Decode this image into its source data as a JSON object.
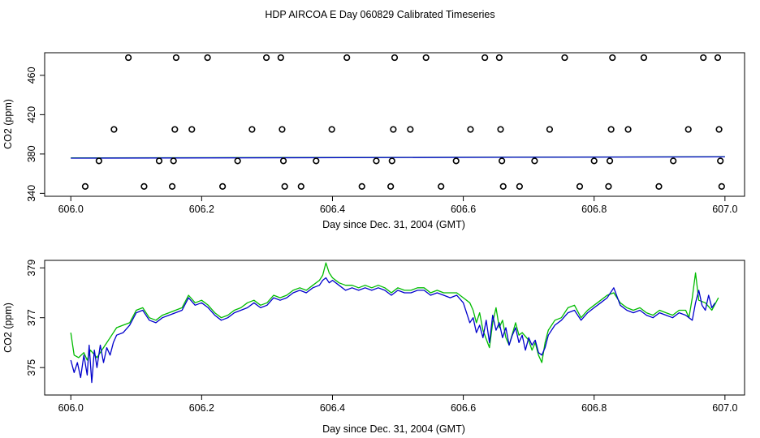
{
  "title": "HDP AIRCOA E  Day 060829  Calibrated Timeseries",
  "colors": {
    "series_green": "#00bb00",
    "series_blue": "#0000cc",
    "axis": "#000000"
  },
  "chart_data": [
    {
      "type": "scatter+line",
      "xlabel": "Day since Dec. 31, 2004 (GMT)",
      "ylabel": "CO2 (ppm)",
      "xlim": [
        605.96,
        607.03
      ],
      "ylim": [
        337,
        483
      ],
      "x_ticks": [
        606.0,
        606.2,
        606.4,
        606.6,
        606.8,
        607.0
      ],
      "x_tick_labels": [
        "606.0",
        "606.2",
        "606.4",
        "606.6",
        "606.8",
        "607.0"
      ],
      "y_ticks": [
        340,
        380,
        420,
        460
      ],
      "y_tick_labels": [
        "340",
        "380",
        "420",
        "460"
      ],
      "grid": false,
      "points": [
        {
          "x": 606.022,
          "y": 347
        },
        {
          "x": 606.043,
          "y": 373
        },
        {
          "x": 606.066,
          "y": 405
        },
        {
          "x": 606.088,
          "y": 478
        },
        {
          "x": 606.112,
          "y": 347
        },
        {
          "x": 606.135,
          "y": 373
        },
        {
          "x": 606.155,
          "y": 347
        },
        {
          "x": 606.157,
          "y": 373
        },
        {
          "x": 606.159,
          "y": 405
        },
        {
          "x": 606.161,
          "y": 478
        },
        {
          "x": 606.185,
          "y": 405
        },
        {
          "x": 606.209,
          "y": 478
        },
        {
          "x": 606.232,
          "y": 347
        },
        {
          "x": 606.255,
          "y": 373
        },
        {
          "x": 606.277,
          "y": 405
        },
        {
          "x": 606.299,
          "y": 478
        },
        {
          "x": 606.321,
          "y": 478
        },
        {
          "x": 606.323,
          "y": 405
        },
        {
          "x": 606.325,
          "y": 373
        },
        {
          "x": 606.327,
          "y": 347
        },
        {
          "x": 606.352,
          "y": 347
        },
        {
          "x": 606.375,
          "y": 373
        },
        {
          "x": 606.399,
          "y": 405
        },
        {
          "x": 606.422,
          "y": 478
        },
        {
          "x": 606.445,
          "y": 347
        },
        {
          "x": 606.467,
          "y": 373
        },
        {
          "x": 606.489,
          "y": 347
        },
        {
          "x": 606.491,
          "y": 373
        },
        {
          "x": 606.493,
          "y": 405
        },
        {
          "x": 606.495,
          "y": 478
        },
        {
          "x": 606.519,
          "y": 405
        },
        {
          "x": 606.543,
          "y": 478
        },
        {
          "x": 606.566,
          "y": 347
        },
        {
          "x": 606.589,
          "y": 373
        },
        {
          "x": 606.611,
          "y": 405
        },
        {
          "x": 606.633,
          "y": 478
        },
        {
          "x": 606.655,
          "y": 478
        },
        {
          "x": 606.657,
          "y": 405
        },
        {
          "x": 606.659,
          "y": 373
        },
        {
          "x": 606.661,
          "y": 347
        },
        {
          "x": 606.686,
          "y": 347
        },
        {
          "x": 606.709,
          "y": 373
        },
        {
          "x": 606.732,
          "y": 405
        },
        {
          "x": 606.755,
          "y": 478
        },
        {
          "x": 606.778,
          "y": 347
        },
        {
          "x": 606.8,
          "y": 373
        },
        {
          "x": 606.822,
          "y": 347
        },
        {
          "x": 606.824,
          "y": 373
        },
        {
          "x": 606.826,
          "y": 405
        },
        {
          "x": 606.828,
          "y": 478
        },
        {
          "x": 606.852,
          "y": 405
        },
        {
          "x": 606.876,
          "y": 478
        },
        {
          "x": 606.899,
          "y": 347
        },
        {
          "x": 606.921,
          "y": 373
        },
        {
          "x": 606.944,
          "y": 405
        },
        {
          "x": 606.967,
          "y": 478
        },
        {
          "x": 606.989,
          "y": 478
        },
        {
          "x": 606.991,
          "y": 405
        },
        {
          "x": 606.993,
          "y": 373
        },
        {
          "x": 606.995,
          "y": 347
        }
      ],
      "series": [
        {
          "color": "#00bb00",
          "x": [
            606.0,
            607.0
          ],
          "values": [
            376.0,
            377.2
          ]
        },
        {
          "color": "#0000cc",
          "x": [
            606.0,
            607.0
          ],
          "values": [
            375.8,
            377.1
          ]
        }
      ]
    },
    {
      "type": "line",
      "xlabel": "Day since Dec. 31, 2004 (GMT)",
      "ylabel": "CO2 (ppm)",
      "xlim": [
        605.96,
        607.03
      ],
      "ylim": [
        373.9,
        379.3
      ],
      "x_ticks": [
        606.0,
        606.2,
        606.4,
        606.6,
        606.8,
        607.0
      ],
      "x_tick_labels": [
        "606.0",
        "606.2",
        "606.4",
        "606.6",
        "606.8",
        "607.0"
      ],
      "y_ticks": [
        375,
        377,
        379
      ],
      "y_tick_labels": [
        "375",
        "377",
        "379"
      ],
      "grid": false,
      "series": [
        {
          "color": "#00bb00",
          "x": [
            606.0,
            606.005,
            606.012,
            606.02,
            606.025,
            606.03,
            606.04,
            606.05,
            606.06,
            606.07,
            606.08,
            606.09,
            606.1,
            606.11,
            606.12,
            606.13,
            606.14,
            606.15,
            606.16,
            606.17,
            606.18,
            606.19,
            606.2,
            606.21,
            606.22,
            606.23,
            606.24,
            606.25,
            606.26,
            606.27,
            606.28,
            606.29,
            606.3,
            606.31,
            606.32,
            606.33,
            606.34,
            606.35,
            606.36,
            606.37,
            606.38,
            606.385,
            606.39,
            606.395,
            606.4,
            606.41,
            606.42,
            606.43,
            606.44,
            606.45,
            606.46,
            606.47,
            606.48,
            606.49,
            606.5,
            606.51,
            606.52,
            606.53,
            606.54,
            606.55,
            606.56,
            606.57,
            606.58,
            606.59,
            606.6,
            606.61,
            606.615,
            606.62,
            606.625,
            606.63,
            606.64,
            606.645,
            606.65,
            606.655,
            606.66,
            606.665,
            606.67,
            606.68,
            606.685,
            606.69,
            606.7,
            606.705,
            606.71,
            606.715,
            606.72,
            606.725,
            606.73,
            606.74,
            606.75,
            606.76,
            606.77,
            606.78,
            606.79,
            606.8,
            606.81,
            606.82,
            606.83,
            606.84,
            606.85,
            606.86,
            606.87,
            606.88,
            606.89,
            606.9,
            606.91,
            606.92,
            606.93,
            606.94,
            606.945,
            606.95,
            606.955,
            606.96,
            606.97,
            606.98,
            606.99
          ],
          "values": [
            376.4,
            375.5,
            375.4,
            375.6,
            375.3,
            375.7,
            375.4,
            375.8,
            376.2,
            376.6,
            376.7,
            376.8,
            377.3,
            377.4,
            377.0,
            376.9,
            377.1,
            377.2,
            377.3,
            377.4,
            377.9,
            377.6,
            377.7,
            377.5,
            377.2,
            377.0,
            377.1,
            377.3,
            377.4,
            377.6,
            377.7,
            377.5,
            377.6,
            377.9,
            377.8,
            377.9,
            378.1,
            378.2,
            378.1,
            378.3,
            378.5,
            378.7,
            379.2,
            378.8,
            378.6,
            378.4,
            378.3,
            378.3,
            378.2,
            378.3,
            378.2,
            378.3,
            378.2,
            378.0,
            378.2,
            378.1,
            378.1,
            378.2,
            378.2,
            378.0,
            378.1,
            378.0,
            378.0,
            378.0,
            377.8,
            377.6,
            377.3,
            376.8,
            377.2,
            376.5,
            375.8,
            376.8,
            377.4,
            376.6,
            376.9,
            376.2,
            375.9,
            376.8,
            376.3,
            376.4,
            376.1,
            375.7,
            376.0,
            375.5,
            375.2,
            376.0,
            376.5,
            376.9,
            377.0,
            377.4,
            377.5,
            377.0,
            377.3,
            377.5,
            377.7,
            377.9,
            378.0,
            377.6,
            377.4,
            377.3,
            377.4,
            377.2,
            377.1,
            377.3,
            377.2,
            377.1,
            377.3,
            377.3,
            377.0,
            377.8,
            378.8,
            377.7,
            377.6,
            377.3,
            377.8
          ]
        },
        {
          "color": "#0000cc",
          "x": [
            606.0,
            606.005,
            606.01,
            606.015,
            606.02,
            606.025,
            606.028,
            606.032,
            606.036,
            606.04,
            606.045,
            606.05,
            606.055,
            606.06,
            606.065,
            606.07,
            606.08,
            606.09,
            606.1,
            606.11,
            606.12,
            606.13,
            606.14,
            606.15,
            606.16,
            606.17,
            606.18,
            606.19,
            606.2,
            606.21,
            606.22,
            606.23,
            606.24,
            606.25,
            606.26,
            606.27,
            606.28,
            606.29,
            606.3,
            606.31,
            606.32,
            606.33,
            606.34,
            606.35,
            606.36,
            606.37,
            606.38,
            606.385,
            606.39,
            606.395,
            606.4,
            606.41,
            606.42,
            606.43,
            606.44,
            606.45,
            606.46,
            606.47,
            606.48,
            606.49,
            606.5,
            606.51,
            606.52,
            606.53,
            606.54,
            606.55,
            606.56,
            606.57,
            606.58,
            606.59,
            606.6,
            606.605,
            606.61,
            606.615,
            606.62,
            606.625,
            606.63,
            606.635,
            606.64,
            606.645,
            606.65,
            606.655,
            606.66,
            606.665,
            606.67,
            606.675,
            606.68,
            606.685,
            606.69,
            606.695,
            606.7,
            606.705,
            606.71,
            606.715,
            606.72,
            606.725,
            606.73,
            606.74,
            606.75,
            606.76,
            606.77,
            606.78,
            606.79,
            606.8,
            606.81,
            606.82,
            606.83,
            606.84,
            606.85,
            606.86,
            606.87,
            606.88,
            606.89,
            606.9,
            606.91,
            606.92,
            606.93,
            606.94,
            606.95,
            606.955,
            606.96,
            606.965,
            606.97,
            606.975,
            606.98,
            606.985
          ],
          "values": [
            375.3,
            374.8,
            375.2,
            374.6,
            375.5,
            374.7,
            375.9,
            374.4,
            375.7,
            375.0,
            375.9,
            375.2,
            375.8,
            375.5,
            376.0,
            376.3,
            376.4,
            376.7,
            377.2,
            377.3,
            376.9,
            376.8,
            377.0,
            377.1,
            377.2,
            377.3,
            377.8,
            377.5,
            377.6,
            377.4,
            377.1,
            376.9,
            377.0,
            377.2,
            377.3,
            377.4,
            377.6,
            377.4,
            377.5,
            377.8,
            377.7,
            377.8,
            378.0,
            378.1,
            378.0,
            378.2,
            378.3,
            378.5,
            378.6,
            378.4,
            378.5,
            378.3,
            378.1,
            378.2,
            378.1,
            378.2,
            378.1,
            378.2,
            378.1,
            377.9,
            378.1,
            378.0,
            378.0,
            378.1,
            378.1,
            377.9,
            378.0,
            377.9,
            377.8,
            377.9,
            377.6,
            377.2,
            376.8,
            377.0,
            376.4,
            376.7,
            376.2,
            376.9,
            376.0,
            377.1,
            376.5,
            376.8,
            376.2,
            376.6,
            375.9,
            376.3,
            376.6,
            376.0,
            376.3,
            375.7,
            376.2,
            375.9,
            376.1,
            375.6,
            375.5,
            375.8,
            376.3,
            376.7,
            376.9,
            377.2,
            377.3,
            376.9,
            377.2,
            377.4,
            377.6,
            377.8,
            378.2,
            377.5,
            377.3,
            377.2,
            377.3,
            377.1,
            377.0,
            377.2,
            377.1,
            377.0,
            377.2,
            377.1,
            376.9,
            377.6,
            378.1,
            377.5,
            377.3,
            377.9,
            377.4,
            377.6
          ]
        }
      ]
    }
  ]
}
